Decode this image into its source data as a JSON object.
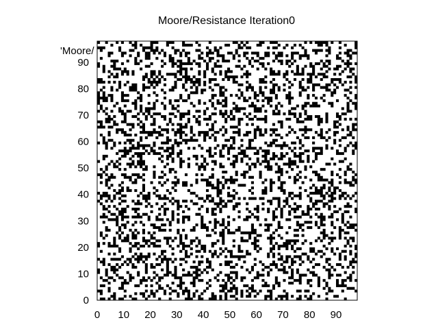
{
  "chart_data": {
    "type": "heatmap",
    "title": "Moore/Resistance Iteration0",
    "legend_label": "'Moore/",
    "legend_position": "top-left",
    "xlabel": "",
    "ylabel": "",
    "xlim": [
      0,
      98
    ],
    "ylim": [
      0,
      98
    ],
    "grid_size": 98,
    "x_ticks": [
      "0",
      "10",
      "20",
      "30",
      "40",
      "50",
      "60",
      "70",
      "80",
      "90"
    ],
    "y_ticks": [
      "0",
      "10",
      "20",
      "30",
      "40",
      "50",
      "60",
      "70",
      "80",
      "90"
    ],
    "x_tick_values": [
      0,
      10,
      20,
      30,
      40,
      50,
      60,
      70,
      80,
      90
    ],
    "y_tick_values": [
      0,
      10,
      20,
      30,
      40,
      50,
      60,
      70,
      80,
      90
    ],
    "values": "binary grid: black cells = 1, white cells = 0 (random initial state, approx. 30% black)",
    "colors": {
      "on": "#000000",
      "off": "#ffffff",
      "border": "#000000"
    },
    "grid": false
  }
}
